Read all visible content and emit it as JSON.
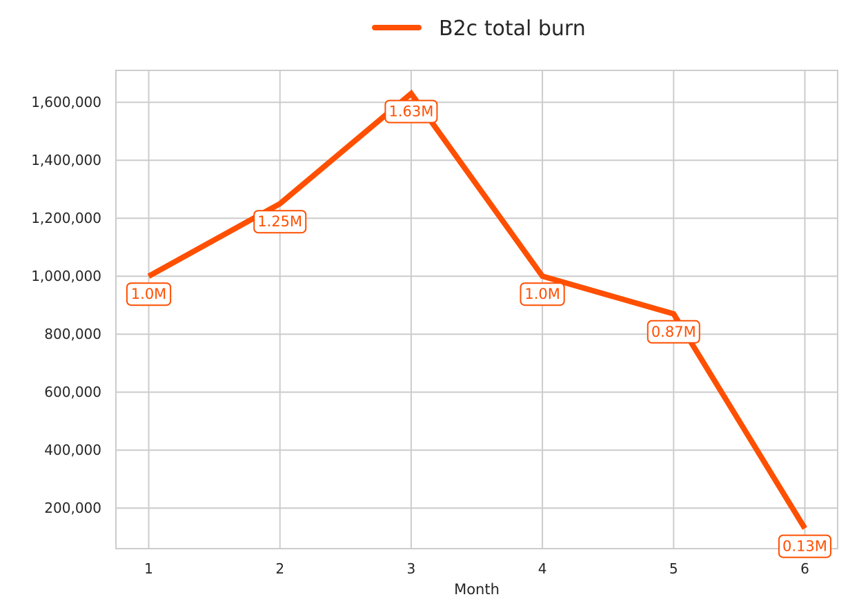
{
  "chart_data": {
    "type": "line",
    "x": [
      1,
      2,
      3,
      4,
      5,
      6
    ],
    "series": [
      {
        "name": "B2c total burn",
        "values": [
          1000000,
          1250000,
          1630000,
          1000000,
          870000,
          130000
        ],
        "color": "#ff4f00"
      }
    ],
    "data_labels": [
      "1.0M",
      "1.25M",
      "1.63M",
      "1.0M",
      "0.87M",
      "0.13M"
    ],
    "xticks": [
      "1",
      "2",
      "3",
      "4",
      "5",
      "6"
    ],
    "yticks": [
      200000,
      400000,
      600000,
      800000,
      1000000,
      1200000,
      1400000,
      1600000
    ],
    "ytick_labels": [
      "200,000",
      "400,000",
      "600,000",
      "800,000",
      "1,000,000",
      "1,200,000",
      "1,400,000",
      "1,600,000"
    ],
    "xlabel": "Month",
    "ylabel": "",
    "title": "",
    "xlim": [
      0.75,
      6.25
    ],
    "ylim": [
      60000,
      1710000
    ],
    "grid": true,
    "legend_position": "top-center"
  }
}
